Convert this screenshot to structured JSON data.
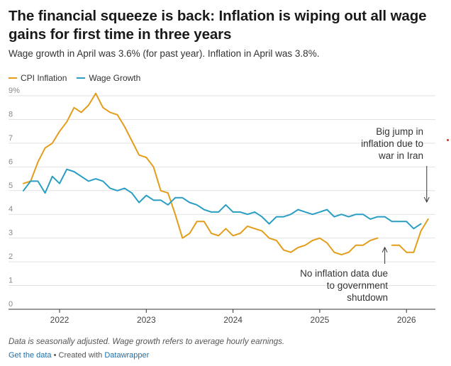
{
  "header": {
    "title": "The financial squeeze is back: Inflation is wiping out all wage gains for first time in three years",
    "subtitle": "Wage growth in April was 3.6% (for past year). Inflation in April was 3.8%."
  },
  "footer": {
    "note": "Data is seasonally adjusted. Wage growth refers to average hourly earnings.",
    "get_data": "Get the data",
    "separator": " • Created with ",
    "datawrapper": "Datawrapper"
  },
  "chart_data": {
    "type": "line",
    "ylim": [
      0,
      9
    ],
    "yticks": [
      "0",
      "1",
      "2",
      "3",
      "4",
      "5",
      "6",
      "7",
      "8",
      "9%"
    ],
    "xticks": [
      "2022",
      "2023",
      "2024",
      "2025",
      "2026"
    ],
    "grid": true,
    "legend_position": "top-left",
    "series": [
      {
        "name": "CPI Inflation",
        "color": "#e39d1b",
        "points": [
          [
            "2021-08",
            5.3
          ],
          [
            "2021-09",
            5.4
          ],
          [
            "2021-10",
            6.2
          ],
          [
            "2021-11",
            6.8
          ],
          [
            "2021-12",
            7.0
          ],
          [
            "2022-01",
            7.5
          ],
          [
            "2022-02",
            7.9
          ],
          [
            "2022-03",
            8.5
          ],
          [
            "2022-04",
            8.3
          ],
          [
            "2022-05",
            8.6
          ],
          [
            "2022-06",
            9.1
          ],
          [
            "2022-07",
            8.5
          ],
          [
            "2022-08",
            8.3
          ],
          [
            "2022-09",
            8.2
          ],
          [
            "2022-10",
            7.7
          ],
          [
            "2022-11",
            7.1
          ],
          [
            "2022-12",
            6.5
          ],
          [
            "2023-01",
            6.4
          ],
          [
            "2023-02",
            6.0
          ],
          [
            "2023-03",
            5.0
          ],
          [
            "2023-04",
            4.9
          ],
          [
            "2023-05",
            4.0
          ],
          [
            "2023-06",
            3.0
          ],
          [
            "2023-07",
            3.2
          ],
          [
            "2023-08",
            3.7
          ],
          [
            "2023-09",
            3.7
          ],
          [
            "2023-10",
            3.2
          ],
          [
            "2023-11",
            3.1
          ],
          [
            "2023-12",
            3.4
          ],
          [
            "2024-01",
            3.1
          ],
          [
            "2024-02",
            3.2
          ],
          [
            "2024-03",
            3.5
          ],
          [
            "2024-04",
            3.4
          ],
          [
            "2024-05",
            3.3
          ],
          [
            "2024-06",
            3.0
          ],
          [
            "2024-07",
            2.9
          ],
          [
            "2024-08",
            2.5
          ],
          [
            "2024-09",
            2.4
          ],
          [
            "2024-10",
            2.6
          ],
          [
            "2024-11",
            2.7
          ],
          [
            "2024-12",
            2.9
          ],
          [
            "2025-01",
            3.0
          ],
          [
            "2025-02",
            2.8
          ],
          [
            "2025-03",
            2.4
          ],
          [
            "2025-04",
            2.3
          ],
          [
            "2025-05",
            2.4
          ],
          [
            "2025-06",
            2.7
          ],
          [
            "2025-07",
            2.7
          ],
          [
            "2025-08",
            2.9
          ],
          [
            "2025-09",
            3.0
          ],
          null,
          [
            "2025-11",
            2.7
          ],
          [
            "2025-12",
            2.7
          ],
          [
            "2026-01",
            2.4
          ],
          [
            "2026-02",
            2.4
          ],
          [
            "2026-03",
            3.3
          ],
          [
            "2026-04",
            3.8
          ]
        ]
      },
      {
        "name": "Wage Growth",
        "color": "#2a9ec2",
        "points": [
          [
            "2021-08",
            5.0
          ],
          [
            "2021-09",
            5.4
          ],
          [
            "2021-10",
            5.4
          ],
          [
            "2021-11",
            4.9
          ],
          [
            "2021-12",
            5.6
          ],
          [
            "2022-01",
            5.3
          ],
          [
            "2022-02",
            5.9
          ],
          [
            "2022-03",
            5.8
          ],
          [
            "2022-04",
            5.6
          ],
          [
            "2022-05",
            5.4
          ],
          [
            "2022-06",
            5.5
          ],
          [
            "2022-07",
            5.4
          ],
          [
            "2022-08",
            5.1
          ],
          [
            "2022-09",
            5.0
          ],
          [
            "2022-10",
            5.1
          ],
          [
            "2022-11",
            4.9
          ],
          [
            "2022-12",
            4.5
          ],
          [
            "2023-01",
            4.8
          ],
          [
            "2023-02",
            4.6
          ],
          [
            "2023-03",
            4.6
          ],
          [
            "2023-04",
            4.4
          ],
          [
            "2023-05",
            4.7
          ],
          [
            "2023-06",
            4.7
          ],
          [
            "2023-07",
            4.5
          ],
          [
            "2023-08",
            4.4
          ],
          [
            "2023-09",
            4.2
          ],
          [
            "2023-10",
            4.1
          ],
          [
            "2023-11",
            4.1
          ],
          [
            "2023-12",
            4.4
          ],
          [
            "2024-01",
            4.1
          ],
          [
            "2024-02",
            4.1
          ],
          [
            "2024-03",
            4.0
          ],
          [
            "2024-04",
            4.1
          ],
          [
            "2024-05",
            3.9
          ],
          [
            "2024-06",
            3.6
          ],
          [
            "2024-07",
            3.9
          ],
          [
            "2024-08",
            3.9
          ],
          [
            "2024-09",
            4.0
          ],
          [
            "2024-10",
            4.2
          ],
          [
            "2024-11",
            4.1
          ],
          [
            "2024-12",
            4.0
          ],
          [
            "2025-01",
            4.1
          ],
          [
            "2025-02",
            4.2
          ],
          [
            "2025-03",
            3.9
          ],
          [
            "2025-04",
            4.0
          ],
          [
            "2025-05",
            3.9
          ],
          [
            "2025-06",
            4.0
          ],
          [
            "2025-07",
            4.0
          ],
          [
            "2025-08",
            3.8
          ],
          [
            "2025-09",
            3.9
          ],
          [
            "2025-10",
            3.9
          ],
          [
            "2025-11",
            3.7
          ],
          [
            "2025-12",
            3.7
          ],
          [
            "2026-01",
            3.7
          ],
          [
            "2026-02",
            3.4
          ],
          [
            "2026-03",
            3.6
          ]
        ]
      }
    ],
    "annotations": [
      {
        "id": "iran",
        "lines": [
          "Big jump in",
          "inflation due to",
          "war in Iran"
        ],
        "target": [
          "2026-04",
          3.8
        ]
      },
      {
        "id": "shutdown",
        "lines": [
          "No inflation data due",
          "to government",
          "shutdown"
        ],
        "target": [
          "2025-10",
          2.7
        ]
      }
    ]
  }
}
